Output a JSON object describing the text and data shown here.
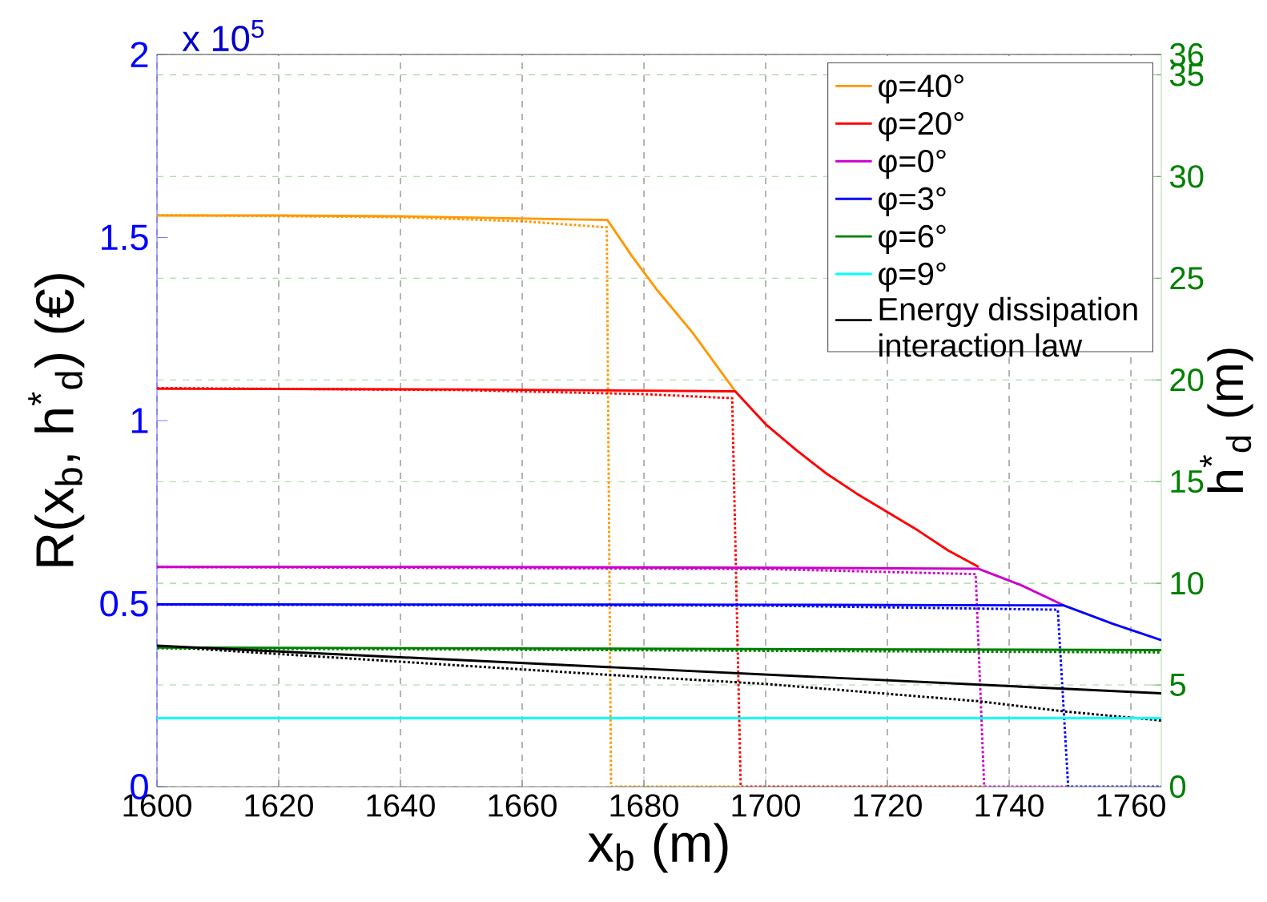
{
  "chart_data": {
    "type": "line",
    "xlabel": "x$_{b}$ (m)",
    "ylabel": "R(x$_{b}$, h$^{*}$$_{d}$) (€)",
    "y2label": "h$^{*}$$_{d}$ (m)",
    "annotations": [
      "x 10$^{5}$"
    ],
    "xlim": [
      1600,
      1765
    ],
    "xticks": [
      1600,
      1620,
      1640,
      1660,
      1680,
      1700,
      1720,
      1740,
      1760
    ],
    "ylim": [
      0,
      2
    ],
    "yticks": [
      0,
      0.5,
      1,
      1.5,
      2
    ],
    "y2lim": [
      0,
      36
    ],
    "y2ticks": [
      0,
      5,
      10,
      15,
      20,
      25,
      30,
      35,
      36
    ],
    "grid": true,
    "legend": "top right",
    "series": [
      {
        "name": "φ=40°",
        "color": "#ff9900",
        "x": [
          1600,
          1620,
          1640,
          1660,
          1670,
          1674,
          1678,
          1682,
          1688,
          1695
        ],
        "values": [
          1.56,
          1.56,
          1.558,
          1.552,
          1.549,
          1.548,
          1.45,
          1.36,
          1.24,
          1.08
        ]
      },
      {
        "name": "φ=20°",
        "color": "#ff0000",
        "x": [
          1600,
          1650,
          1695,
          1700,
          1705,
          1710,
          1715,
          1720,
          1725,
          1730,
          1735
        ],
        "values": [
          1.087,
          1.085,
          1.08,
          0.99,
          0.92,
          0.855,
          0.8,
          0.75,
          0.7,
          0.645,
          0.6
        ]
      },
      {
        "name": "φ=0°",
        "color": "#cc00cc",
        "x": [
          1600,
          1650,
          1700,
          1735,
          1742,
          1749
        ],
        "values": [
          0.6,
          0.6,
          0.598,
          0.595,
          0.55,
          0.495
        ]
      },
      {
        "name": "φ=3°",
        "color": "#0000ff",
        "x": [
          1600,
          1700,
          1749,
          1757,
          1765
        ],
        "values": [
          0.498,
          0.497,
          0.495,
          0.445,
          0.4
        ]
      },
      {
        "name": "φ=6°",
        "color": "#007f00",
        "x": [
          1600,
          1765
        ],
        "values": [
          0.38,
          0.373
        ]
      },
      {
        "name": "φ=9°",
        "color": "#00ffff",
        "x": [
          1600,
          1765
        ],
        "values": [
          0.187,
          0.187
        ]
      },
      {
        "name": "Energy dissipation interaction law",
        "color": "#000000",
        "x": [
          1600,
          1765
        ],
        "values": [
          0.385,
          0.255
        ]
      },
      {
        "color": "#ff9900",
        "axis": "y2",
        "line_style": "dotted",
        "x": [
          1600,
          1640,
          1660,
          1673.9,
          1674.6,
          1695.9
        ],
        "values": [
          28.1,
          28.0,
          27.8,
          27.5,
          0,
          0
        ]
      },
      {
        "color": "#ff0000",
        "axis": "y2",
        "line_style": "dotted",
        "x": [
          1600,
          1650,
          1680,
          1694.5,
          1695.9,
          1735.9
        ],
        "values": [
          19.6,
          19.5,
          19.3,
          19.1,
          0,
          0
        ]
      },
      {
        "color": "#cc00cc",
        "axis": "y2",
        "line_style": "dotted",
        "x": [
          1600,
          1700,
          1734.5,
          1735.9,
          1749.7
        ],
        "values": [
          10.8,
          10.7,
          10.45,
          0,
          0
        ]
      },
      {
        "color": "#0000ff",
        "axis": "y2",
        "line_style": "dotted",
        "x": [
          1600,
          1700,
          1748,
          1749.7,
          1765
        ],
        "values": [
          8.95,
          8.9,
          8.7,
          0,
          0
        ]
      },
      {
        "color": "#007f00",
        "axis": "y2",
        "line_style": "dotted",
        "x": [
          1600,
          1765
        ],
        "values": [
          6.8,
          6.6
        ]
      },
      {
        "color": "#000000",
        "axis": "y2",
        "line_style": "dotted",
        "x": [
          1600,
          1674,
          1700,
          1735,
          1749,
          1765
        ],
        "values": [
          6.9,
          5.5,
          5.05,
          4.2,
          3.7,
          3.25
        ]
      }
    ]
  }
}
